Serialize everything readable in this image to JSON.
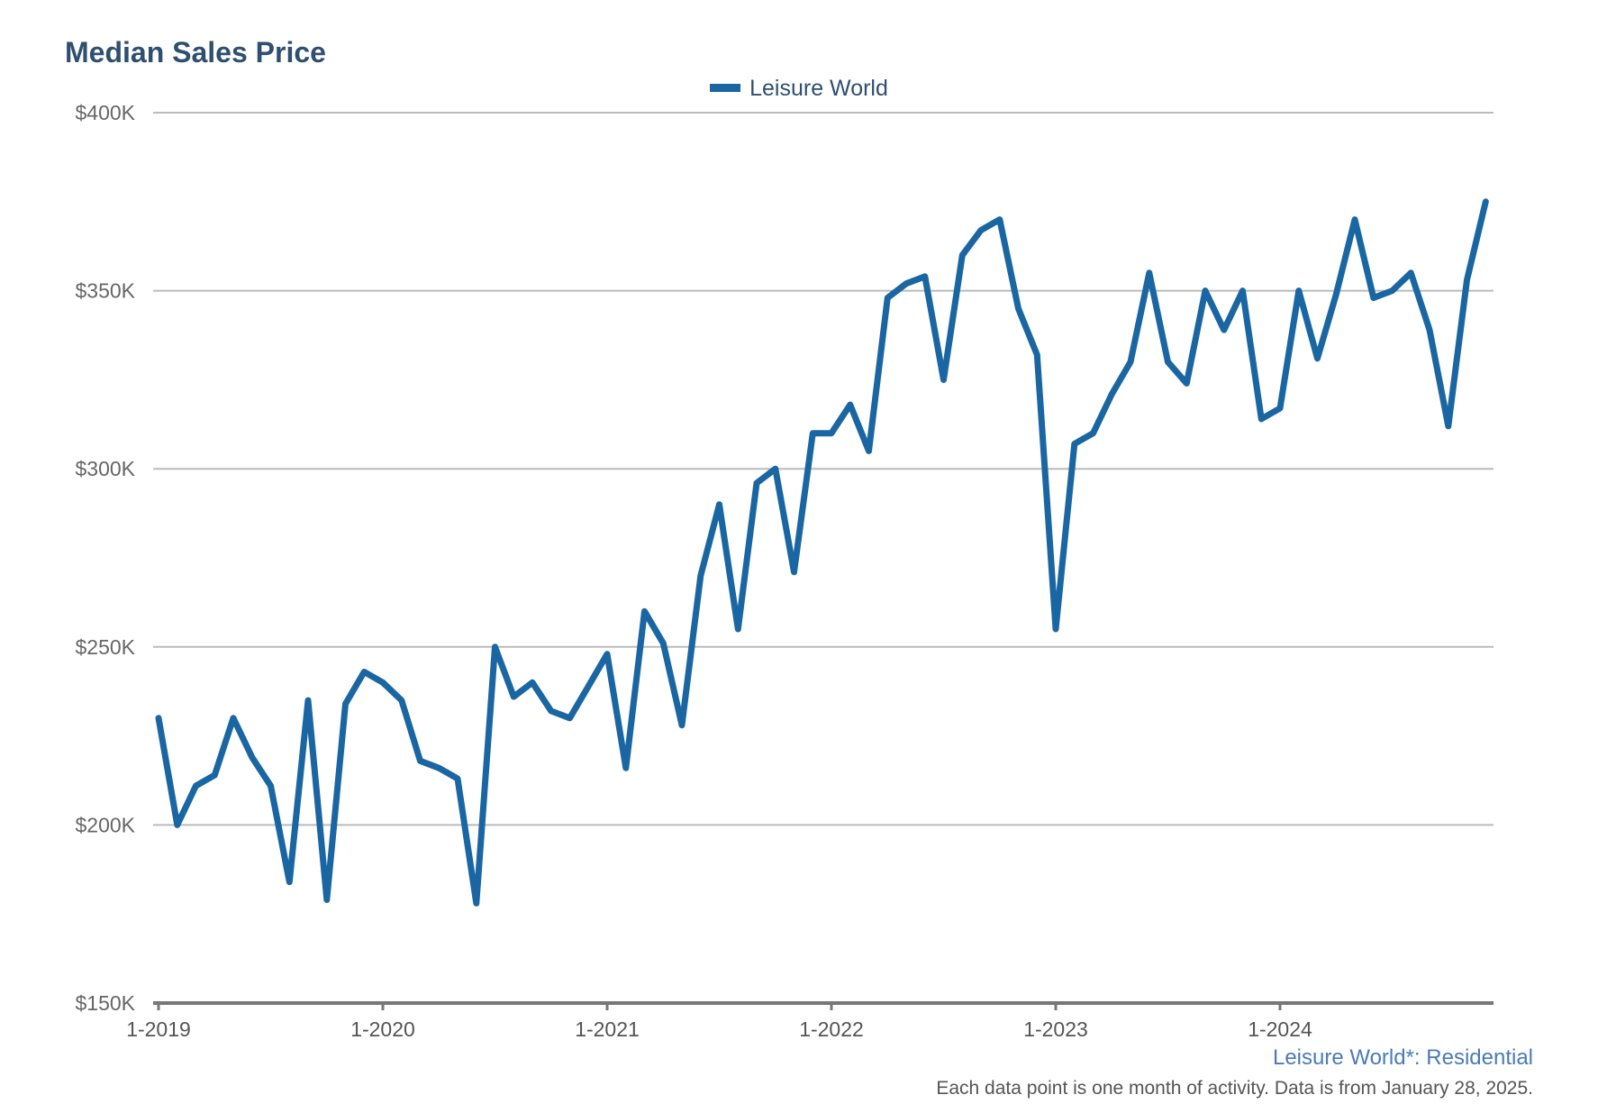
{
  "chart_data": {
    "type": "line",
    "title": "Median Sales Price",
    "xlabel": "",
    "ylabel": "",
    "ylim": [
      150000,
      400000
    ],
    "yticks": [
      "$150K",
      "$200K",
      "$250K",
      "$300K",
      "$350K",
      "$400K"
    ],
    "ytick_values": [
      150000,
      200000,
      250000,
      300000,
      350000,
      400000
    ],
    "xticks": [
      "1-2019",
      "1-2020",
      "1-2021",
      "1-2022",
      "1-2023",
      "1-2024"
    ],
    "legend": "top-center",
    "grid": true,
    "x": [
      "2019-01",
      "2019-02",
      "2019-03",
      "2019-04",
      "2019-05",
      "2019-06",
      "2019-07",
      "2019-08",
      "2019-09",
      "2019-10",
      "2019-11",
      "2019-12",
      "2020-01",
      "2020-02",
      "2020-03",
      "2020-04",
      "2020-05",
      "2020-06",
      "2020-07",
      "2020-08",
      "2020-09",
      "2020-10",
      "2020-11",
      "2020-12",
      "2021-01",
      "2021-02",
      "2021-03",
      "2021-04",
      "2021-05",
      "2021-06",
      "2021-07",
      "2021-08",
      "2021-09",
      "2021-10",
      "2021-11",
      "2021-12",
      "2022-01",
      "2022-02",
      "2022-03",
      "2022-04",
      "2022-05",
      "2022-06",
      "2022-07",
      "2022-08",
      "2022-09",
      "2022-10",
      "2022-11",
      "2022-12",
      "2023-01",
      "2023-02",
      "2023-03",
      "2023-04",
      "2023-05",
      "2023-06",
      "2023-07",
      "2023-08",
      "2023-09",
      "2023-10",
      "2023-11",
      "2023-12",
      "2024-01",
      "2024-02",
      "2024-03",
      "2024-04",
      "2024-05",
      "2024-06",
      "2024-07",
      "2024-08",
      "2024-09",
      "2024-10",
      "2024-11",
      "2024-12"
    ],
    "series": [
      {
        "name": "Leisure World",
        "color": "#1a66a3",
        "values": [
          230000,
          200000,
          211000,
          214000,
          230000,
          219000,
          211000,
          184000,
          235000,
          179000,
          234000,
          243000,
          240000,
          235000,
          218000,
          216000,
          213000,
          178000,
          250000,
          236000,
          240000,
          232000,
          230000,
          239000,
          248000,
          216000,
          260000,
          251000,
          228000,
          270000,
          290000,
          255000,
          296000,
          300000,
          271000,
          310000,
          310000,
          318000,
          305000,
          348000,
          352000,
          354000,
          325000,
          360000,
          367000,
          370000,
          345000,
          332000,
          255000,
          307000,
          310000,
          321000,
          330000,
          355000,
          330000,
          324000,
          350000,
          339000,
          350000,
          314000,
          317000,
          350000,
          331000,
          349000,
          370000,
          348000,
          350000,
          355000,
          339000,
          312000,
          353000,
          375000
        ]
      }
    ]
  },
  "footer": {
    "source": "Leisure World*: Residential",
    "note": "Each data point is one month of activity. Data is from January 28, 2025."
  }
}
